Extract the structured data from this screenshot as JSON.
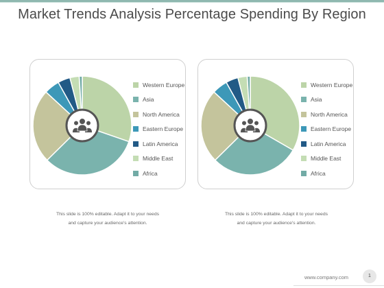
{
  "title": "Market Trends Analysis Percentage Spending By Region",
  "colors": {
    "western_europe": "#bcd4a8",
    "asia": "#7ab3ad",
    "north_america": "#c4c49c",
    "eastern_europe": "#3d98b8",
    "latin_america": "#225a86",
    "middle_east": "#c4ddb4",
    "africa": "#72aba6"
  },
  "center_icon": "people-group-icon",
  "charts": [
    {
      "legend": [
        "Western Europe",
        "Asia",
        "North America",
        "Eastern Europe",
        "Latin America",
        "Middle East",
        "Africa"
      ],
      "caption": "This slide is 100% editable. Adapt it to your needs and capture your audience's attention."
    },
    {
      "legend": [
        "Western Europe",
        "Asia",
        "North America",
        "Eastern Europe",
        "Latin America",
        "Middle East",
        "Africa"
      ],
      "caption": "This slide is 100% editable. Adapt it to your needs and capture your audience's attention."
    }
  ],
  "chart_data": [
    {
      "type": "pie",
      "categories": [
        "Western Europe",
        "Asia",
        "North America",
        "Eastern Europe",
        "Latin America",
        "Middle East",
        "Africa"
      ],
      "values": [
        30,
        32,
        24,
        5,
        4,
        3,
        1
      ]
    },
    {
      "type": "pie",
      "categories": [
        "Western Europe",
        "Asia",
        "North America",
        "Eastern Europe",
        "Latin America",
        "Middle East",
        "Africa"
      ],
      "values": [
        33,
        29,
        24,
        5,
        4,
        3,
        1
      ]
    }
  ],
  "footer": {
    "website": "www.company.com",
    "page_number": "1"
  }
}
